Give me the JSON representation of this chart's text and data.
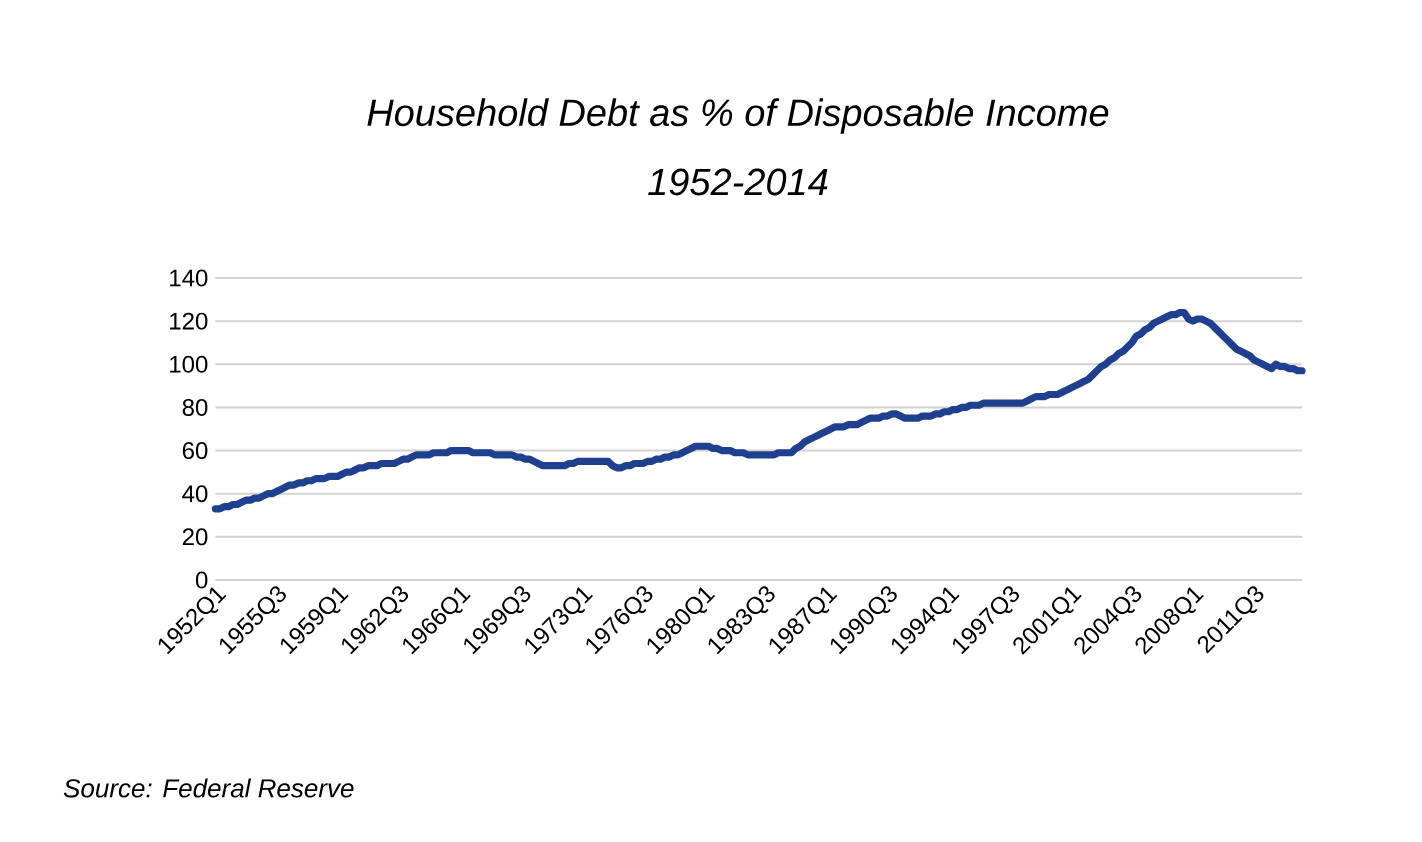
{
  "chart_data": {
    "type": "line",
    "title": "Household Debt as % of Disposable Income",
    "subtitle": "1952-2014",
    "annotations": [
      "Source: Federal Reserve"
    ],
    "categories": [
      "1952Q1",
      null,
      null,
      null,
      null,
      null,
      null,
      null,
      null,
      null,
      null,
      null,
      null,
      null,
      "1955Q3",
      null,
      null,
      null,
      null,
      null,
      null,
      null,
      null,
      null,
      null,
      null,
      null,
      null,
      "1959Q1",
      null,
      null,
      null,
      null,
      null,
      null,
      null,
      null,
      null,
      null,
      null,
      null,
      null,
      "1962Q3",
      null,
      null,
      null,
      null,
      null,
      null,
      null,
      null,
      null,
      null,
      null,
      null,
      null,
      "1966Q1",
      null,
      null,
      null,
      null,
      null,
      null,
      null,
      null,
      null,
      null,
      null,
      null,
      null,
      "1969Q3",
      null,
      null,
      null,
      null,
      null,
      null,
      null,
      null,
      null,
      null,
      null,
      null,
      null,
      "1973Q1",
      null,
      null,
      null,
      null,
      null,
      null,
      null,
      null,
      null,
      null,
      null,
      null,
      null,
      "1976Q3",
      null,
      null,
      null,
      null,
      null,
      null,
      null,
      null,
      null,
      null,
      null,
      null,
      null,
      "1980Q1",
      null,
      null,
      null,
      null,
      null,
      null,
      null,
      null,
      null,
      null,
      null,
      null,
      null,
      "1983Q3",
      null,
      null,
      null,
      null,
      null,
      null,
      null,
      null,
      null,
      null,
      null,
      null,
      null,
      "1987Q1",
      null,
      null,
      null,
      null,
      null,
      null,
      null,
      null,
      null,
      null,
      null,
      null,
      null,
      "1990Q3",
      null,
      null,
      null,
      null,
      null,
      null,
      null,
      null,
      null,
      null,
      null,
      null,
      null,
      "1994Q1",
      null,
      null,
      null,
      null,
      null,
      null,
      null,
      null,
      null,
      null,
      null,
      null,
      null,
      "1997Q3",
      null,
      null,
      null,
      null,
      null,
      null,
      null,
      null,
      null,
      null,
      null,
      null,
      null,
      "2001Q1",
      null,
      null,
      null,
      null,
      null,
      null,
      null,
      null,
      null,
      null,
      null,
      null,
      null,
      "2004Q3",
      null,
      null,
      null,
      null,
      null,
      null,
      null,
      null,
      null,
      null,
      null,
      null,
      null,
      "2008Q1",
      null,
      null,
      null,
      null,
      null,
      null,
      null,
      null,
      null,
      null,
      null,
      null,
      null,
      "2011Q3",
      null,
      null,
      null,
      null,
      null,
      null,
      null,
      null,
      null,
      null,
      null
    ],
    "values": [
      33,
      33,
      34,
      34,
      35,
      35,
      36,
      37,
      37,
      38,
      38,
      39,
      40,
      40,
      41,
      42,
      43,
      44,
      44,
      45,
      45,
      46,
      46,
      47,
      47,
      47,
      48,
      48,
      48,
      49,
      50,
      50,
      51,
      52,
      52,
      53,
      53,
      53,
      54,
      54,
      54,
      54,
      55,
      56,
      56,
      57,
      58,
      58,
      58,
      58,
      59,
      59,
      59,
      59,
      60,
      60,
      60,
      60,
      60,
      59,
      59,
      59,
      59,
      59,
      58,
      58,
      58,
      58,
      58,
      57,
      57,
      56,
      56,
      55,
      54,
      53,
      53,
      53,
      53,
      53,
      53,
      54,
      54,
      55,
      55,
      55,
      55,
      55,
      55,
      55,
      55,
      53,
      52,
      52,
      53,
      53,
      54,
      54,
      54,
      55,
      55,
      56,
      56,
      57,
      57,
      58,
      58,
      59,
      60,
      61,
      62,
      62,
      62,
      62,
      61,
      61,
      60,
      60,
      60,
      59,
      59,
      59,
      58,
      58,
      58,
      58,
      58,
      58,
      58,
      59,
      59,
      59,
      59,
      61,
      62,
      64,
      65,
      66,
      67,
      68,
      69,
      70,
      71,
      71,
      71,
      72,
      72,
      72,
      73,
      74,
      75,
      75,
      75,
      76,
      76,
      77,
      77,
      76,
      75,
      75,
      75,
      75,
      76,
      76,
      76,
      77,
      77,
      78,
      78,
      79,
      79,
      80,
      80,
      81,
      81,
      81,
      82,
      82,
      82,
      82,
      82,
      82,
      82,
      82,
      82,
      82,
      83,
      84,
      85,
      85,
      85,
      86,
      86,
      86,
      87,
      88,
      89,
      90,
      91,
      92,
      93,
      95,
      97,
      99,
      100,
      102,
      103,
      105,
      106,
      108,
      110,
      113,
      114,
      116,
      117,
      119,
      120,
      121,
      122,
      123,
      123,
      124,
      124,
      121,
      120,
      121,
      121,
      120,
      119,
      117,
      115,
      113,
      111,
      109,
      107,
      106,
      105,
      104,
      102,
      101,
      100,
      99,
      98,
      100,
      99,
      99,
      98,
      98,
      97,
      97
    ],
    "color": "#1f3f8f",
    "ylim": [
      0,
      140
    ],
    "yticks": [
      0,
      20,
      40,
      60,
      80,
      100,
      120,
      140
    ],
    "grid": "y"
  }
}
